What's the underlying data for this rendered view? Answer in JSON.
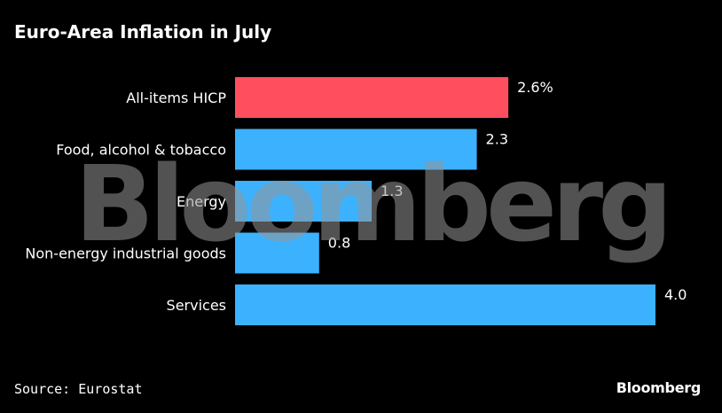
{
  "chart_data": {
    "type": "bar",
    "orientation": "horizontal",
    "title": "Euro-Area Inflation in July",
    "categories": [
      "All-items HICP",
      "Food, alcohol & tobacco",
      "Energy",
      "Non-energy industrial goods",
      "Services"
    ],
    "values": [
      2.6,
      2.3,
      1.3,
      0.8,
      4.0
    ],
    "value_labels": [
      "2.6%",
      "2.3",
      "1.3",
      "0.8",
      "4.0"
    ],
    "bar_colors": [
      "#ff4f5e",
      "#3cb2ff",
      "#3cb2ff",
      "#3cb2ff",
      "#3cb2ff"
    ],
    "xlim": [
      0,
      4.0
    ],
    "grid": false,
    "source": "Source: Eurostat"
  },
  "watermark": "Bloomberg",
  "logo": "Bloomberg",
  "colors": {
    "background": "#000000",
    "highlight": "#ff4f5e",
    "bar": "#3cb2ff"
  }
}
